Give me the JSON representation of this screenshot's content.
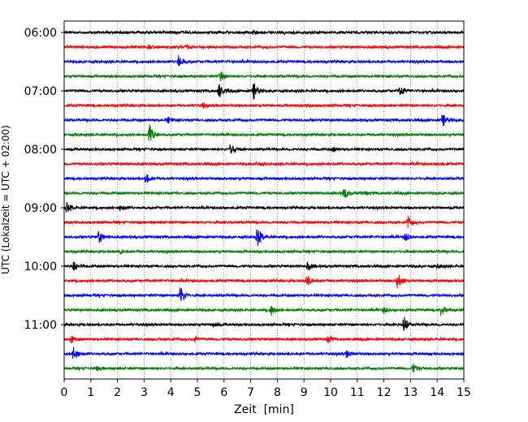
{
  "chart_data": {
    "type": "line",
    "title": "",
    "xlabel": "Zeit  [min]",
    "ylabel": "UTC (Lokalzeit = UTC + 02:00)",
    "xlim": [
      0,
      15
    ],
    "x_ticks": [
      "0",
      "1",
      "2",
      "3",
      "4",
      "5",
      "6",
      "7",
      "8",
      "9",
      "10",
      "11",
      "12",
      "13",
      "14",
      "15"
    ],
    "y_tick_labels": [
      "06:00",
      "07:00",
      "08:00",
      "09:00",
      "10:00",
      "11:00"
    ],
    "grid": "vertical dotted",
    "colors": [
      "#000000",
      "#ff0000",
      "#0000ff",
      "#008000"
    ],
    "trace_interval_min": 15,
    "series": [
      {
        "start": "06:00",
        "color": "#000000",
        "events": [
          [
            7.1,
            0.2
          ]
        ]
      },
      {
        "start": "06:15",
        "color": "#ff0000",
        "events": [
          [
            3.1,
            0.25
          ],
          [
            4.6,
            0.15
          ]
        ]
      },
      {
        "start": "06:30",
        "color": "#0000ff",
        "events": [
          [
            4.3,
            0.6
          ]
        ]
      },
      {
        "start": "06:45",
        "color": "#008000",
        "events": [
          [
            5.85,
            0.55
          ]
        ]
      },
      {
        "start": "07:00",
        "color": "#000000",
        "events": [
          [
            5.8,
            1.0
          ],
          [
            7.1,
            1.05
          ],
          [
            12.6,
            0.7
          ]
        ]
      },
      {
        "start": "07:15",
        "color": "#ff0000",
        "events": [
          [
            5.2,
            0.2
          ],
          [
            9.1,
            0.15
          ]
        ]
      },
      {
        "start": "07:30",
        "color": "#0000ff",
        "events": [
          [
            3.9,
            0.3
          ],
          [
            14.2,
            0.8
          ]
        ]
      },
      {
        "start": "07:45",
        "color": "#008000",
        "events": [
          [
            3.2,
            1.2
          ]
        ]
      },
      {
        "start": "08:00",
        "color": "#000000",
        "events": [
          [
            6.25,
            0.75
          ],
          [
            10.1,
            0.2
          ]
        ]
      },
      {
        "start": "08:15",
        "color": "#ff0000",
        "events": [
          [
            7.2,
            0.2
          ],
          [
            14.0,
            0.15
          ]
        ]
      },
      {
        "start": "08:30",
        "color": "#0000ff",
        "events": [
          [
            3.05,
            0.55
          ]
        ]
      },
      {
        "start": "08:45",
        "color": "#008000",
        "events": [
          [
            10.5,
            0.6
          ],
          [
            11.2,
            0.2
          ]
        ]
      },
      {
        "start": "09:00",
        "color": "#000000",
        "events": [
          [
            0.1,
            0.5
          ],
          [
            2.1,
            0.3
          ]
        ]
      },
      {
        "start": "09:15",
        "color": "#ff0000",
        "events": [
          [
            12.9,
            0.6
          ]
        ]
      },
      {
        "start": "09:30",
        "color": "#0000ff",
        "events": [
          [
            1.3,
            0.75
          ],
          [
            7.25,
            1.1
          ],
          [
            12.8,
            0.5
          ]
        ]
      },
      {
        "start": "09:45",
        "color": "#008000",
        "events": [
          [
            2.1,
            0.2
          ]
        ]
      },
      {
        "start": "10:00",
        "color": "#000000",
        "events": [
          [
            0.35,
            0.5
          ],
          [
            9.15,
            0.45
          ],
          [
            14.0,
            0.3
          ]
        ]
      },
      {
        "start": "10:15",
        "color": "#ff0000",
        "events": [
          [
            9.1,
            0.7
          ],
          [
            12.5,
            0.9
          ]
        ]
      },
      {
        "start": "10:30",
        "color": "#0000ff",
        "events": [
          [
            4.35,
            1.1
          ]
        ]
      },
      {
        "start": "10:45",
        "color": "#008000",
        "events": [
          [
            7.75,
            0.6
          ],
          [
            12.0,
            0.3
          ],
          [
            14.15,
            0.75
          ]
        ]
      },
      {
        "start": "11:00",
        "color": "#000000",
        "events": [
          [
            5.6,
            0.25
          ],
          [
            12.75,
            0.95
          ]
        ]
      },
      {
        "start": "11:15",
        "color": "#ff0000",
        "events": [
          [
            0.25,
            0.4
          ],
          [
            4.9,
            0.3
          ],
          [
            9.9,
            0.35
          ]
        ]
      },
      {
        "start": "11:30",
        "color": "#0000ff",
        "events": [
          [
            0.35,
            0.85
          ],
          [
            10.6,
            0.4
          ]
        ]
      },
      {
        "start": "11:45",
        "color": "#008000",
        "events": [
          [
            1.2,
            0.2
          ],
          [
            13.1,
            0.5
          ]
        ]
      }
    ]
  }
}
